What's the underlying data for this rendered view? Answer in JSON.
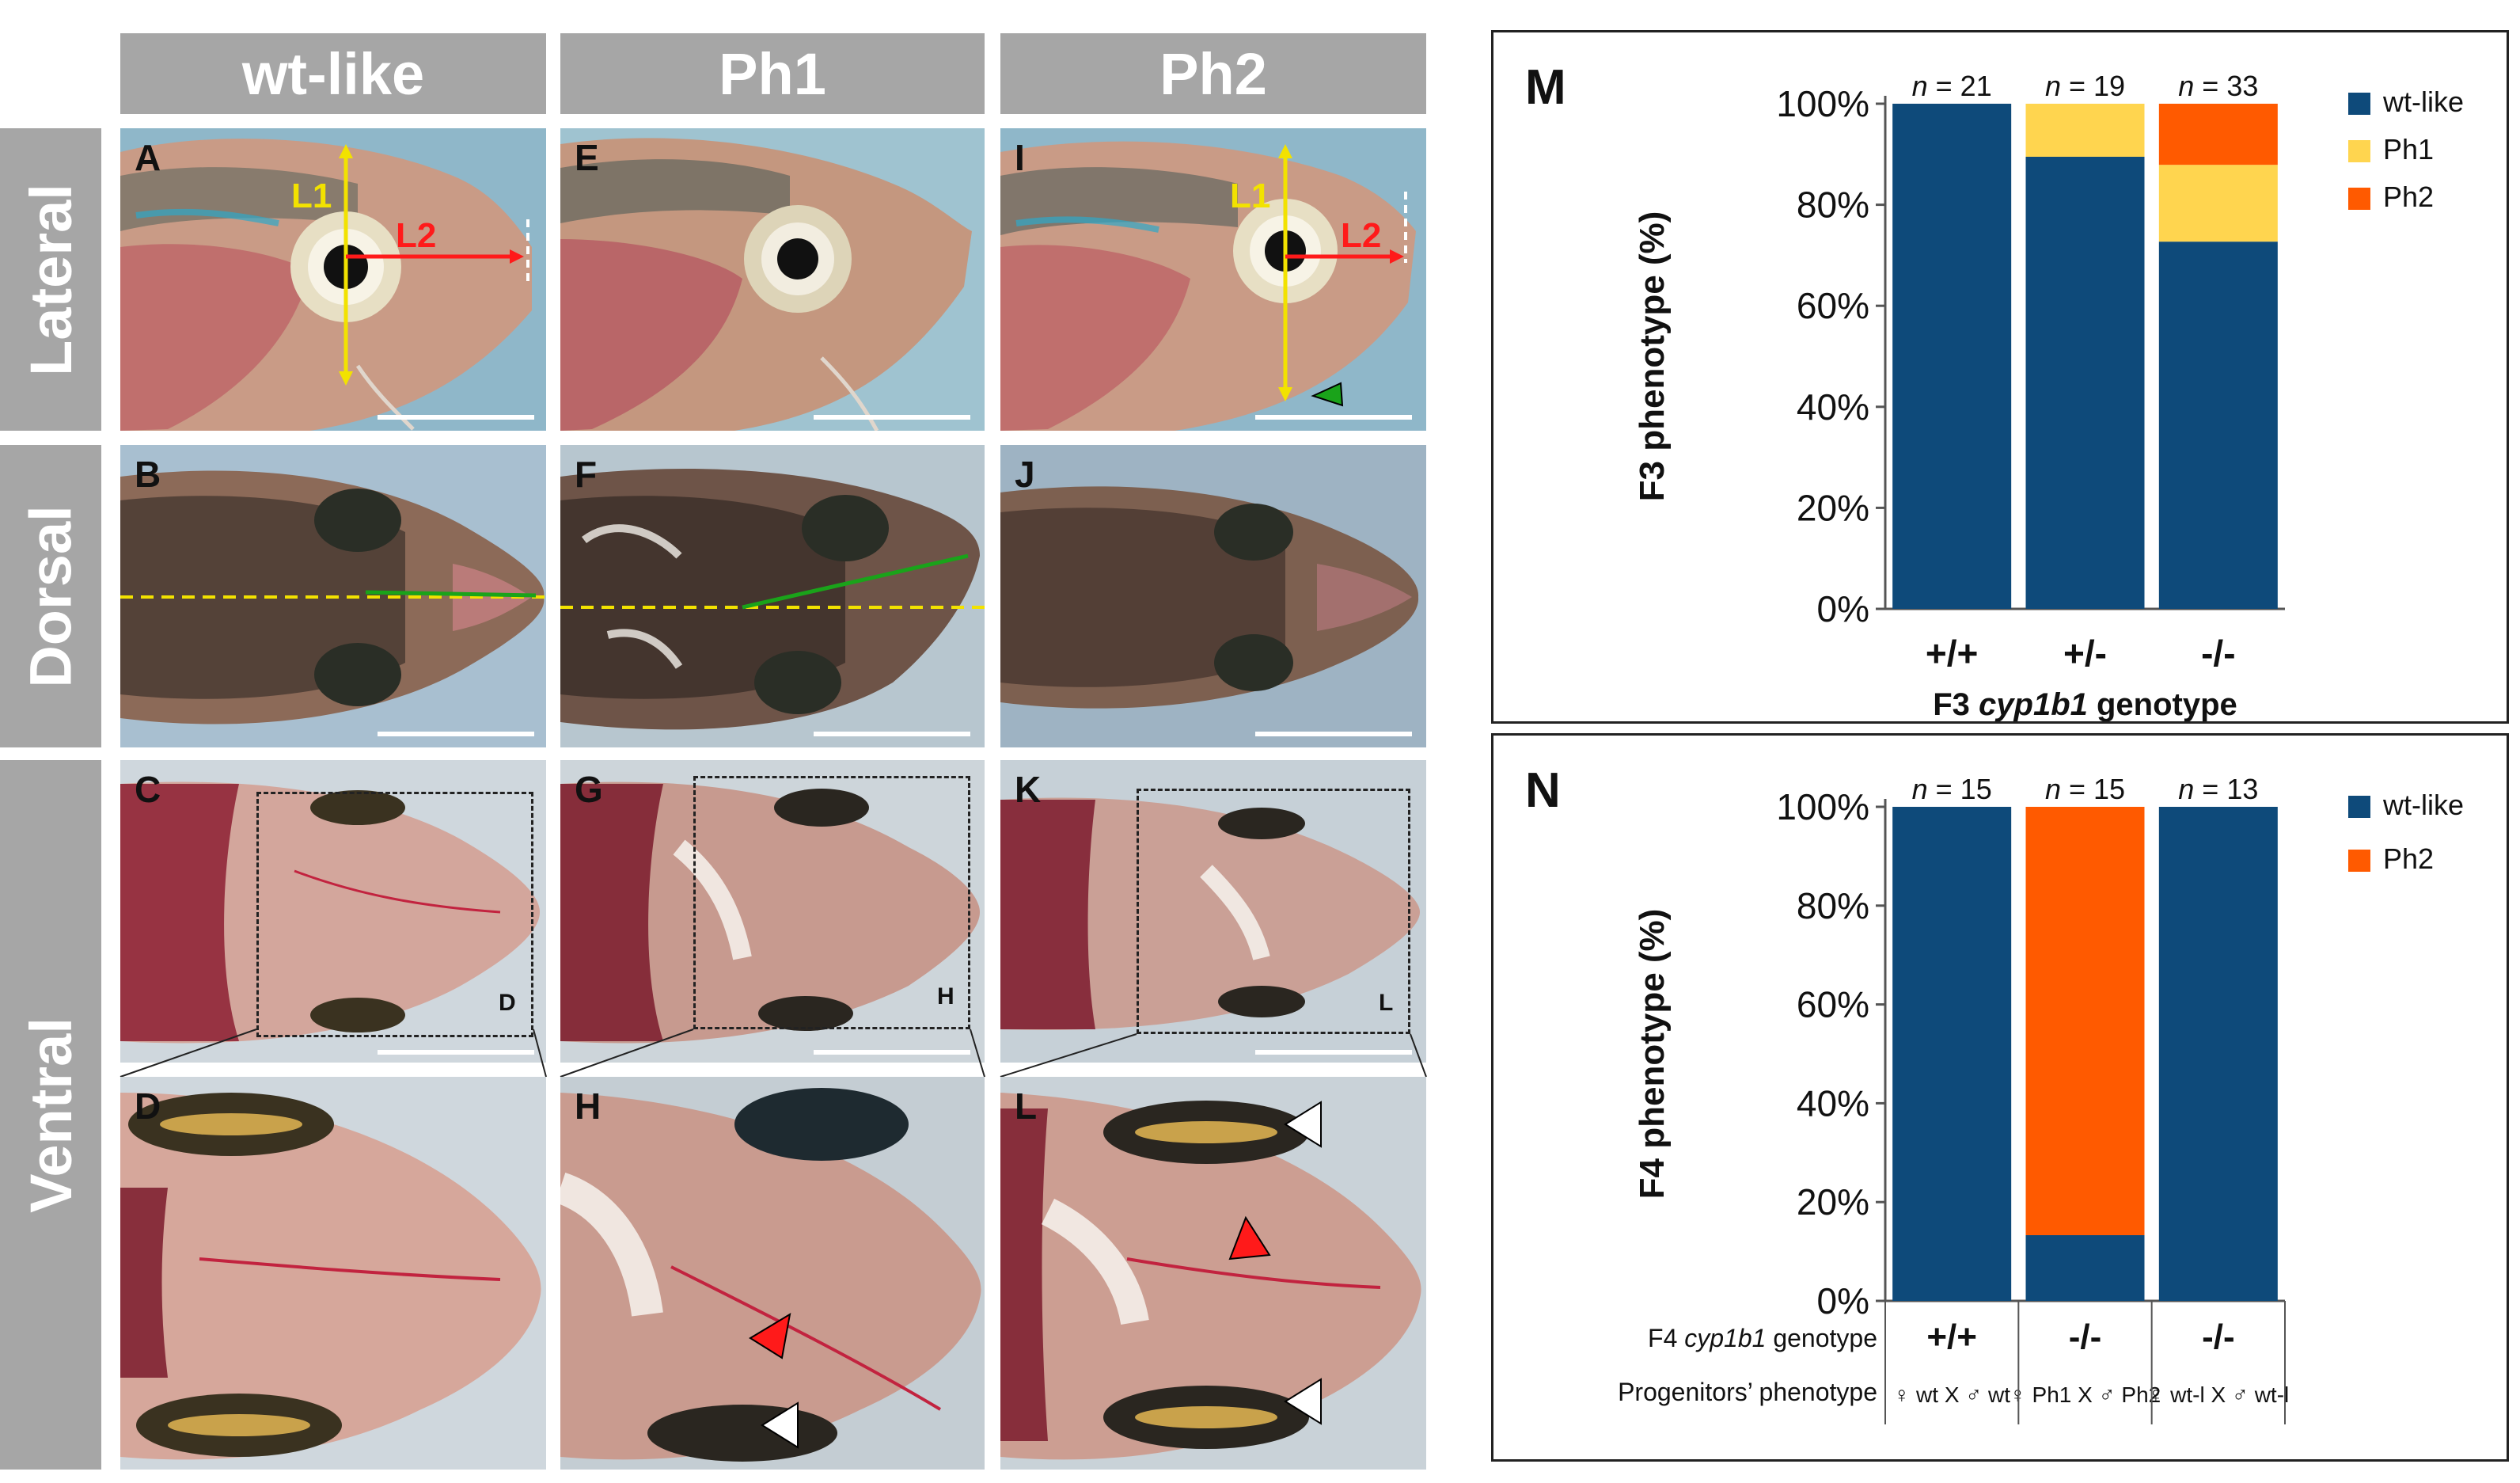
{
  "columns": [
    "wt-like",
    "Ph1",
    "Ph2"
  ],
  "rows": [
    "Lateral",
    "Dorsal",
    "Ventral"
  ],
  "panels": {
    "A": "A",
    "B": "B",
    "C": "C",
    "D": "D",
    "E": "E",
    "F": "F",
    "G": "G",
    "H": "H",
    "I": "I",
    "J": "J",
    "K": "K",
    "L": "L"
  },
  "inset_refs": {
    "C": "D",
    "G": "H",
    "K": "L"
  },
  "measure_labels": {
    "l1": "L1",
    "l2": "L2"
  },
  "colors": {
    "header_gray": "#a6a6a6",
    "wt_like": "#0e4a7a",
    "ph1": "#ffd54f",
    "ph2": "#ff5a00",
    "l1_yellow": "#f2e200",
    "l2_red": "#ff1a1a",
    "line_green": "#1aa31a"
  },
  "chart_data": [
    {
      "panel": "M",
      "type": "bar",
      "stacked": true,
      "title": "",
      "xlabel_prefix": "F3",
      "xlabel_italic": "cyp1b1",
      "xlabel_suffix": "genotype",
      "ylabel": "F3 phenotype (%)",
      "categories": [
        "+/+",
        "+/-",
        "-/-"
      ],
      "n_labels": [
        "n = 21",
        "n = 19",
        "n = 33"
      ],
      "ylim": [
        0,
        100
      ],
      "yticks": [
        "0%",
        "20%",
        "40%",
        "60%",
        "80%",
        "100%"
      ],
      "series": [
        {
          "name": "wt-like",
          "color": "#0e4a7a",
          "values": [
            100,
            89.5,
            72.7
          ]
        },
        {
          "name": "Ph1",
          "color": "#ffd54f",
          "values": [
            0,
            10.5,
            15.2
          ]
        },
        {
          "name": "Ph2",
          "color": "#ff5a00",
          "values": [
            0,
            0,
            12.1
          ]
        }
      ],
      "legend": "right"
    },
    {
      "panel": "N",
      "type": "bar",
      "stacked": true,
      "title": "",
      "ylabel": "F4 phenotype (%)",
      "categories": [
        "+/+",
        "-/-",
        "-/-"
      ],
      "n_labels": [
        "n = 15",
        "n = 15",
        "n = 13"
      ],
      "ylim": [
        0,
        100
      ],
      "yticks": [
        "0%",
        "20%",
        "40%",
        "60%",
        "80%",
        "100%"
      ],
      "series": [
        {
          "name": "wt-like",
          "color": "#0e4a7a",
          "values": [
            100,
            13.3,
            100
          ]
        },
        {
          "name": "Ph2",
          "color": "#ff5a00",
          "values": [
            0,
            86.7,
            0
          ]
        }
      ],
      "legend": "right",
      "table_rows": [
        {
          "label_prefix": "F4",
          "label_italic": "cyp1b1",
          "label_suffix": "genotype",
          "values": [
            "+/+",
            "-/-",
            "-/-"
          ]
        },
        {
          "label": "Progenitors’ phenotype",
          "values": [
            "♀ wt X ♂ wt",
            "♀ Ph1 X ♂ Ph2",
            "♀ wt-l X ♂ wt-l"
          ]
        }
      ]
    }
  ]
}
